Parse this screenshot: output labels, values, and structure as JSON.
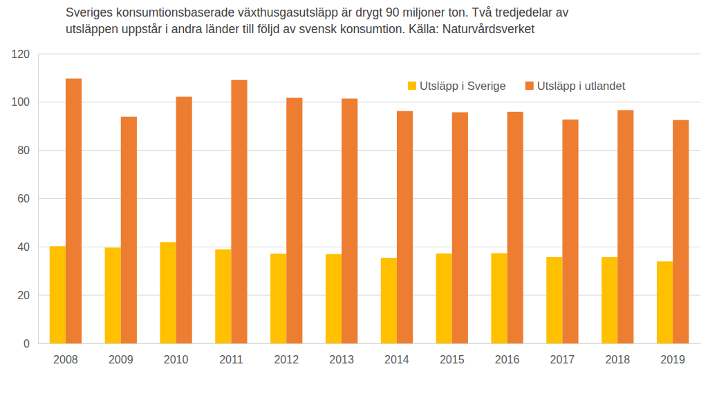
{
  "chart_data": {
    "type": "bar",
    "title": "Sveriges konsumtionsbaserade växthusgasutsläpp är drygt 90 miljoner ton. Två tredjedelar av utsläppen uppstår i andra länder till följd av svensk konsumtion. Källa: Naturvårdsverket",
    "categories": [
      "2008",
      "2009",
      "2010",
      "2011",
      "2012",
      "2013",
      "2014",
      "2015",
      "2016",
      "2017",
      "2018",
      "2019"
    ],
    "series": [
      {
        "name": "Utsläpp i Sverige",
        "color": "#ffc000",
        "values": [
          40.3,
          39.7,
          42,
          39,
          37.2,
          37,
          35.5,
          37.3,
          37.4,
          35.8,
          35.8,
          34
        ]
      },
      {
        "name": "Utsläpp i utlandet",
        "color": "#ed7d31",
        "values": [
          109.8,
          94,
          102.3,
          109.2,
          101.8,
          101.5,
          96.3,
          95.8,
          96,
          92.8,
          96.7,
          92.6
        ]
      }
    ],
    "ylim": [
      0,
      120
    ],
    "yticks": [
      0,
      20,
      40,
      60,
      80,
      100,
      120
    ],
    "grid": true,
    "legend": "top-right"
  }
}
